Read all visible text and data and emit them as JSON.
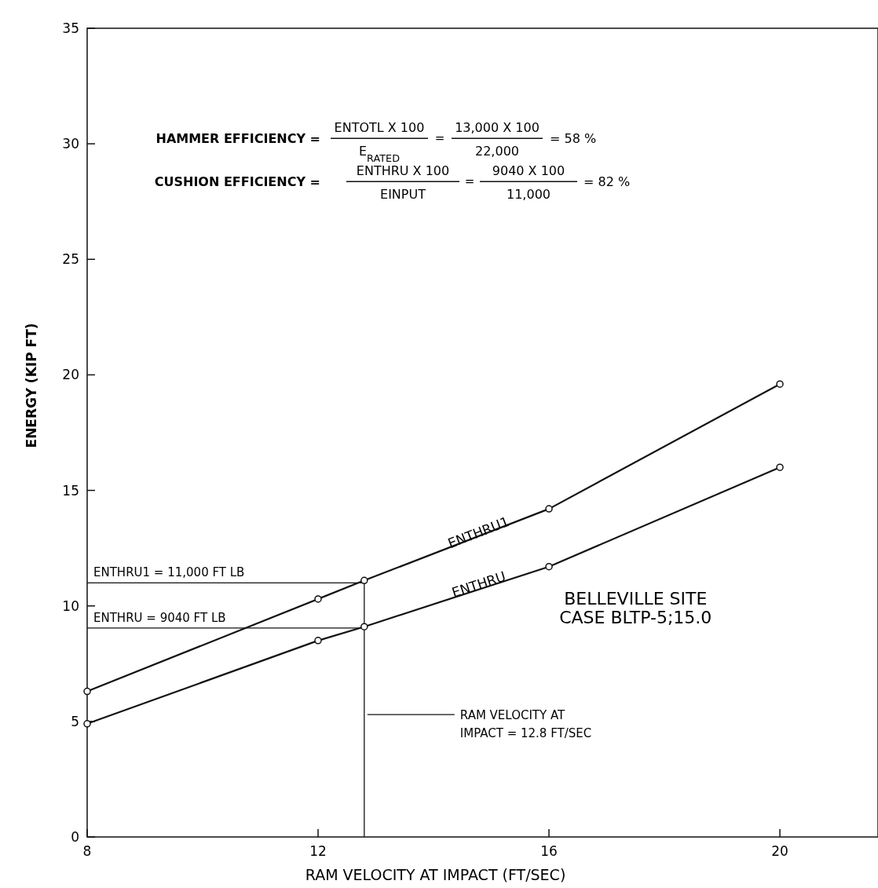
{
  "chart_data": {
    "type": "line",
    "xlabel": "RAM VELOCITY AT IMPACT (FT/SEC)",
    "ylabel": "ENERGY (KIP FT)",
    "xlim": [
      8,
      21.7
    ],
    "xticks": [
      8,
      12,
      16,
      20
    ],
    "ylim": [
      0,
      35
    ],
    "yticks": [
      0,
      5,
      10,
      15,
      20,
      25,
      30,
      35
    ],
    "grid": false,
    "marker": "circle",
    "line_style": "solid",
    "series": [
      {
        "name": "ENTHRU1",
        "color": "#111111",
        "x": [
          8,
          12,
          12.8,
          16,
          20
        ],
        "values": [
          6.3,
          10.3,
          11.1,
          14.2,
          19.6
        ]
      },
      {
        "name": "ENTHRU",
        "color": "#111111",
        "x": [
          8,
          12,
          12.8,
          16,
          20
        ],
        "values": [
          4.9,
          8.5,
          9.1,
          11.7,
          16.0
        ]
      }
    ],
    "ref_lines": [
      {
        "axis": "y",
        "value": 11.0,
        "label": "ENTHRU1 = 11,000 FT LB"
      },
      {
        "axis": "y",
        "value": 9.04,
        "label": "ENTHRU = 9040 FT LB"
      },
      {
        "axis": "x",
        "value": 12.8,
        "label": "RAM VELOCITY AT IMPACT = 12.8 FT/SEC"
      }
    ],
    "annotations": [
      "HAMMER EFFICIENCY =",
      "ENTOTL X 100",
      "E$_{RATED}$",
      "=",
      "13,000 X 100",
      "22,000",
      "= 58 %",
      "CUSHION EFFICIENCY =",
      "ENTHRU X 100",
      "EINPUT",
      "=",
      "9040 X 100",
      "11,000",
      "= 82 %",
      "BELLEVILLE SITE\nCASE BLTP-5;15.0"
    ]
  }
}
